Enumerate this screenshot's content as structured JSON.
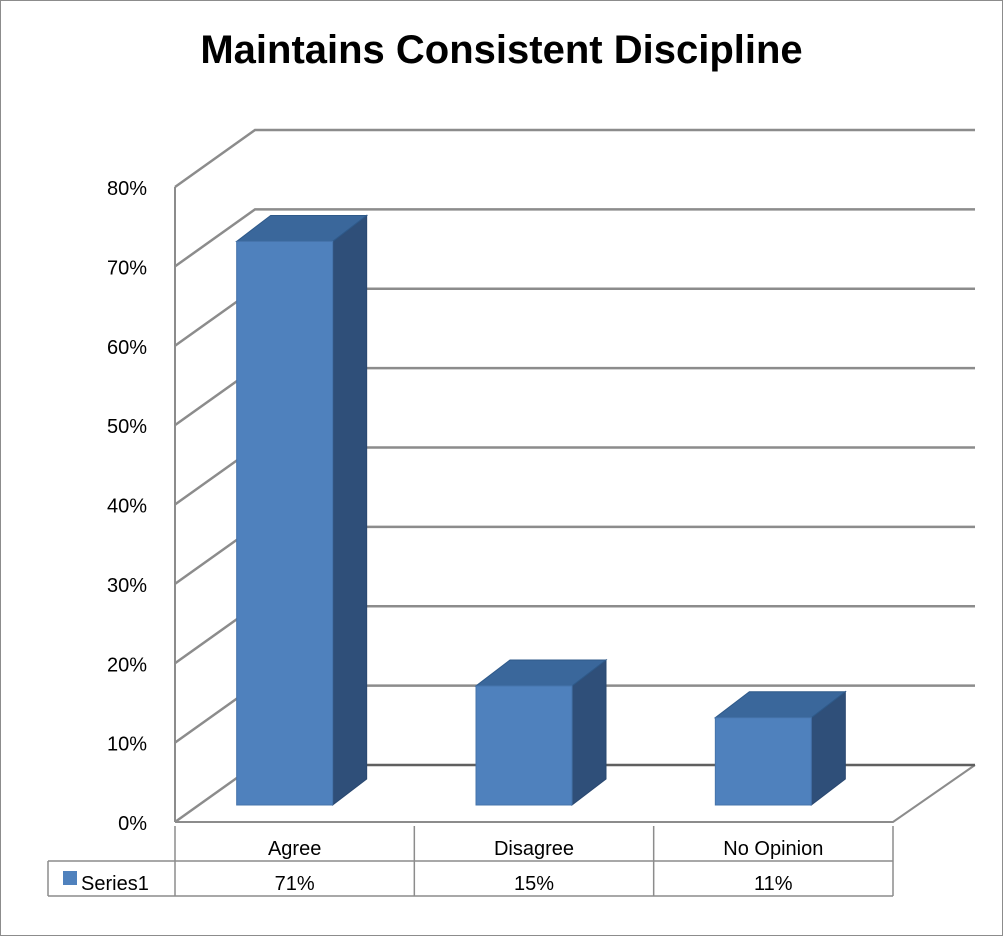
{
  "chart_data": {
    "type": "bar",
    "title": "Maintains Consistent Discipline",
    "categories": [
      "Agree",
      "Disagree",
      "No Opinion"
    ],
    "series": [
      {
        "name": "Series1",
        "values": [
          0.71,
          0.15,
          0.11
        ],
        "labels": [
          "71%",
          "15%",
          "11%"
        ],
        "color": "#4f81bd"
      }
    ],
    "ylim": [
      0,
      0.8
    ],
    "yticks": [
      "0%",
      "10%",
      "20%",
      "30%",
      "40%",
      "50%",
      "60%",
      "70%",
      "80%"
    ],
    "grid": true,
    "legend": "data-table-bottom",
    "style": "3d-column-with-data-table"
  }
}
